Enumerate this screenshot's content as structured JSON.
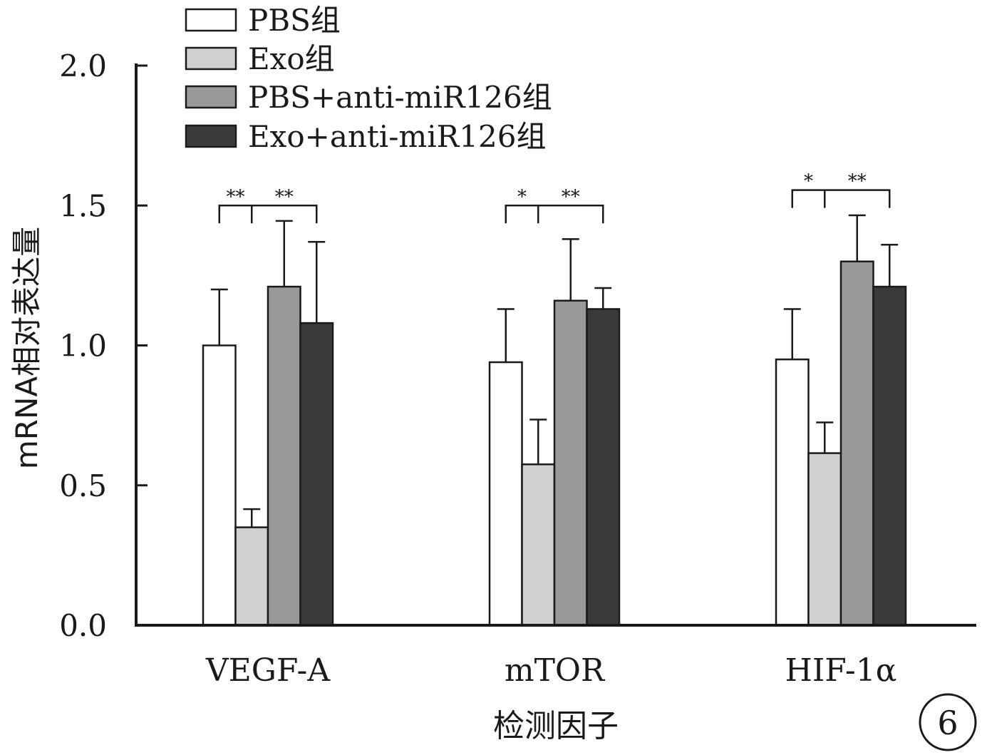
{
  "chart_data": {
    "type": "bar",
    "title": "",
    "xlabel": "检测因子",
    "ylabel": "mRNA相对表达量",
    "ylim": [
      0,
      2.0
    ],
    "yticks": [
      "0.0",
      "0.5",
      "1.0",
      "1.5",
      "2.0"
    ],
    "categories": [
      "VEGF-A",
      "mTOR",
      "HIF-1α"
    ],
    "series": [
      {
        "name": "PBS组",
        "color": "#ffffff",
        "values": [
          1.0,
          0.94,
          0.95
        ],
        "errors": [
          0.2,
          0.19,
          0.18
        ]
      },
      {
        "name": "Exo组",
        "color": "#d0d0d0",
        "values": [
          0.35,
          0.575,
          0.615
        ],
        "errors": [
          0.065,
          0.16,
          0.11
        ]
      },
      {
        "name": "PBS+anti-miR126组",
        "color": "#999999",
        "values": [
          1.21,
          1.16,
          1.3
        ],
        "errors": [
          0.235,
          0.22,
          0.165
        ]
      },
      {
        "name": "Exo+anti-miR126组",
        "color": "#3a3a3a",
        "values": [
          1.08,
          1.13,
          1.21
        ],
        "errors": [
          0.29,
          0.075,
          0.15
        ]
      }
    ],
    "significance": [
      {
        "category": 0,
        "from": 0,
        "to": 1,
        "pivot_to": 3,
        "y": 1.5,
        "left_label": "**",
        "right_label": "**"
      },
      {
        "category": 1,
        "from": 0,
        "to": 1,
        "pivot_to": 3,
        "y": 1.5,
        "left_label": "*",
        "right_label": "**"
      },
      {
        "category": 2,
        "from": 0,
        "to": 1,
        "pivot_to": 3,
        "y": 1.555,
        "left_label": "*",
        "right_label": "**"
      }
    ],
    "legend_position": "top-left",
    "panel_label": "6"
  }
}
